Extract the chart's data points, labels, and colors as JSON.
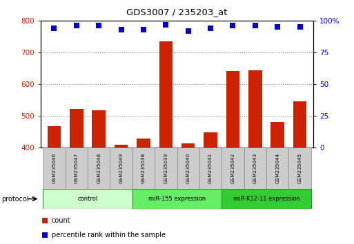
{
  "title": "GDS3007 / 235203_at",
  "samples": [
    "GSM235046",
    "GSM235047",
    "GSM235048",
    "GSM235049",
    "GSM235038",
    "GSM235039",
    "GSM235040",
    "GSM235041",
    "GSM235042",
    "GSM235043",
    "GSM235044",
    "GSM235045"
  ],
  "counts": [
    468,
    522,
    517,
    408,
    428,
    735,
    413,
    449,
    641,
    643,
    480,
    547
  ],
  "percentile_ranks": [
    94,
    96,
    96,
    93,
    93,
    97,
    92,
    94,
    96,
    96,
    95,
    95
  ],
  "groups": [
    {
      "label": "control",
      "start": 0,
      "end": 4,
      "color": "#ccffcc"
    },
    {
      "label": "miR-155 expression",
      "start": 4,
      "end": 8,
      "color": "#66ee66"
    },
    {
      "label": "miR-K12-11 expression",
      "start": 8,
      "end": 12,
      "color": "#33cc33"
    }
  ],
  "ylim_left": [
    400,
    800
  ],
  "ylim_right": [
    0,
    100
  ],
  "yticks_left": [
    400,
    500,
    600,
    700,
    800
  ],
  "yticks_right": [
    0,
    25,
    50,
    75,
    100
  ],
  "bar_color": "#cc2200",
  "dot_color": "#0000cc",
  "bg_color": "#ffffff",
  "legend_count_label": "count",
  "legend_pct_label": "percentile rank within the sample",
  "protocol_label": "protocol"
}
